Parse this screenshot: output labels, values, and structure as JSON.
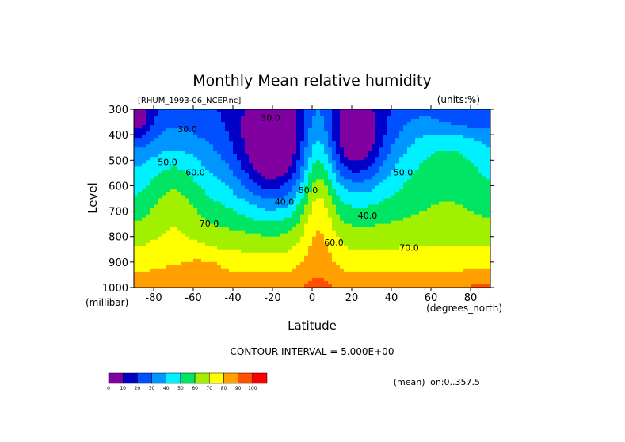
{
  "chart_data": {
    "type": "heatmap",
    "title": "Monthly Mean relative humidity",
    "dataset_label": "[RHUM_1993-06_NCEP.nc]",
    "units_label": "(units:%)",
    "xlabel": "Latitude",
    "x_units_label": "(degrees_north)",
    "ylabel": "Level",
    "y_units_label": "(millibar)",
    "xlim": [
      -90,
      90
    ],
    "ylim": [
      1000,
      300
    ],
    "x_ticks": [
      "-80",
      "-60",
      "-40",
      "-20",
      "0",
      "20",
      "40",
      "60",
      "80"
    ],
    "x_tick_values": [
      -80,
      -60,
      -40,
      -20,
      0,
      20,
      40,
      60,
      80
    ],
    "y_ticks": [
      "300",
      "400",
      "500",
      "600",
      "700",
      "800",
      "900",
      "1000"
    ],
    "y_tick_values": [
      300,
      400,
      500,
      600,
      700,
      800,
      900,
      1000
    ],
    "contour_interval_label": "CONTOUR INTERVAL = 5.000E+00",
    "averaging_label": "(mean) lon:0..357.5",
    "levels": [
      0,
      10,
      20,
      30,
      40,
      50,
      60,
      70,
      80,
      90,
      100
    ],
    "level_labels": [
      "0",
      "10",
      "20",
      "30",
      "40",
      "50",
      "60",
      "70",
      "80",
      "90",
      "100"
    ],
    "colors": [
      "#8000a0",
      "#0000c8",
      "#0050ff",
      "#0096ff",
      "#00f0ff",
      "#00e664",
      "#a0f000",
      "#ffff00",
      "#ffa000",
      "#ff5000",
      "#ff0000"
    ],
    "contour_labels": [
      {
        "text": "30.0",
        "lat": -63,
        "lev": 390
      },
      {
        "text": "30.0",
        "lat": -21,
        "lev": 345
      },
      {
        "text": "50.0",
        "lat": -73,
        "lev": 520
      },
      {
        "text": "60.0",
        "lat": -59,
        "lev": 560
      },
      {
        "text": "70.0",
        "lat": -52,
        "lev": 760
      },
      {
        "text": "40.0",
        "lat": -14,
        "lev": 675
      },
      {
        "text": "50.0",
        "lat": -2,
        "lev": 630
      },
      {
        "text": "60.0",
        "lat": 11,
        "lev": 835
      },
      {
        "text": "40.0",
        "lat": 28,
        "lev": 730
      },
      {
        "text": "50.0",
        "lat": 46,
        "lev": 560
      },
      {
        "text": "70.0",
        "lat": 49,
        "lev": 855
      }
    ]
  }
}
